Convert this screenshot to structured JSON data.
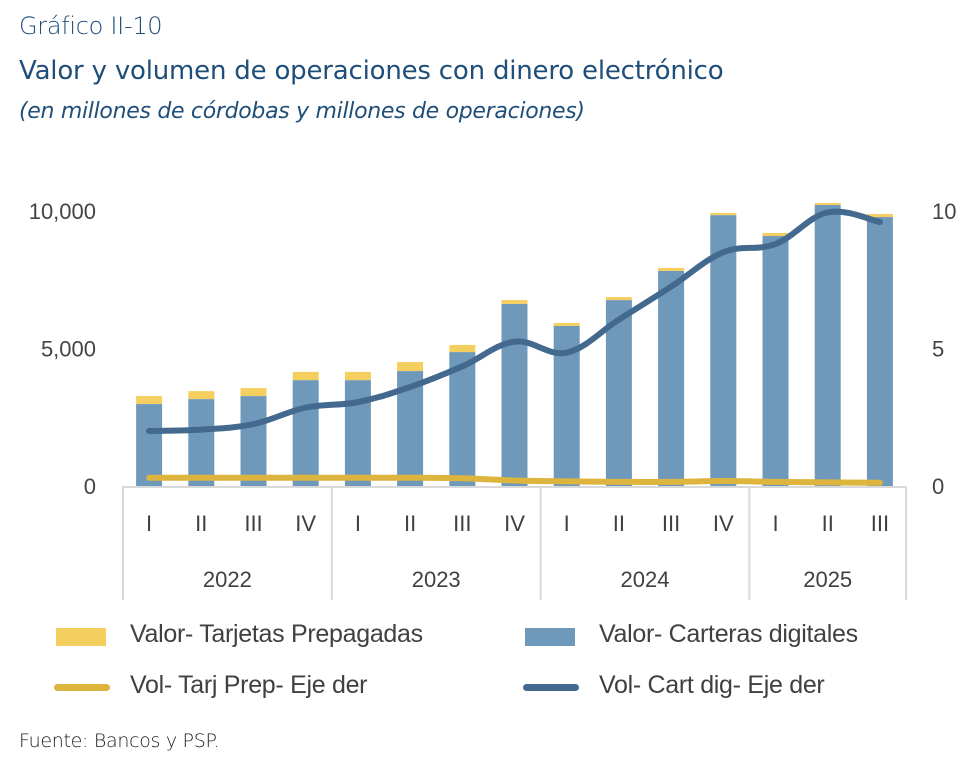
{
  "header": {
    "label": "Gráfico II-10",
    "title": "Valor y volumen de operaciones con dinero electrónico",
    "subtitle": "(en millones de córdobas y millones de operaciones)"
  },
  "source": "Fuente: Bancos y PSP.",
  "colors": {
    "title": "#1F4E79",
    "bar_prepaid": "#F5CE60",
    "bar_wallets": "#6E99BB",
    "line_prepaid": "#DDB43E",
    "line_wallets": "#44698F",
    "axis": "#D9D9D9"
  },
  "chart_data": {
    "type": "bar",
    "title": "Valor y volumen de operaciones con dinero electrónico",
    "subtitle": "(en millones de córdobas y millones de operaciones)",
    "categories": [
      "I",
      "II",
      "III",
      "IV",
      "I",
      "II",
      "III",
      "IV",
      "I",
      "II",
      "III",
      "IV",
      "I",
      "II",
      "III"
    ],
    "groups": [
      {
        "label": "2022",
        "count": 4
      },
      {
        "label": "2023",
        "count": 4
      },
      {
        "label": "2024",
        "count": 4
      },
      {
        "label": "2025",
        "count": 3
      }
    ],
    "y_left": {
      "ticks": [
        0,
        5000,
        10000
      ],
      "tick_labels": [
        "0",
        "5,000",
        "10,000"
      ],
      "range": [
        0,
        10000
      ]
    },
    "y_right": {
      "ticks": [
        0,
        5,
        10
      ],
      "tick_labels": [
        "0",
        "5",
        "10"
      ],
      "range": [
        0,
        10
      ]
    },
    "grid": false,
    "legend_position": "bottom",
    "series": [
      {
        "name": "Valor- Carteras digitales",
        "type": "bar",
        "stack": "valor",
        "axis": "left",
        "values": [
          2980,
          3160,
          3270,
          3850,
          3850,
          4180,
          4870,
          6620,
          5820,
          6760,
          7820,
          9850,
          9090,
          10220,
          9780
        ]
      },
      {
        "name": "Valor- Tarjetas Prepagadas",
        "type": "bar",
        "stack": "valor",
        "axis": "left",
        "values": [
          290,
          290,
          290,
          300,
          300,
          330,
          260,
          140,
          110,
          110,
          110,
          80,
          110,
          70,
          110
        ]
      },
      {
        "name": "Vol- Tarj Prep- Eje der",
        "type": "line",
        "axis": "right",
        "values": [
          0.3,
          0.3,
          0.3,
          0.3,
          0.3,
          0.3,
          0.28,
          0.2,
          0.17,
          0.15,
          0.15,
          0.18,
          0.15,
          0.13,
          0.12
        ]
      },
      {
        "name": "Vol- Cart dig- Eje der",
        "type": "line",
        "axis": "right",
        "values": [
          2.0,
          2.05,
          2.25,
          2.85,
          3.05,
          3.6,
          4.35,
          5.25,
          4.85,
          6.05,
          7.25,
          8.5,
          8.8,
          9.95,
          9.6
        ]
      }
    ]
  },
  "legend": [
    {
      "label": "Valor- Tarjetas Prepagadas",
      "kind": "box",
      "color_key": "bar_prepaid"
    },
    {
      "label": "Valor- Carteras digitales",
      "kind": "box",
      "color_key": "bar_wallets"
    },
    {
      "label": "Vol- Tarj Prep- Eje der",
      "kind": "line",
      "color_key": "line_prepaid"
    },
    {
      "label": "Vol- Cart dig- Eje der",
      "kind": "line",
      "color_key": "line_wallets"
    }
  ]
}
